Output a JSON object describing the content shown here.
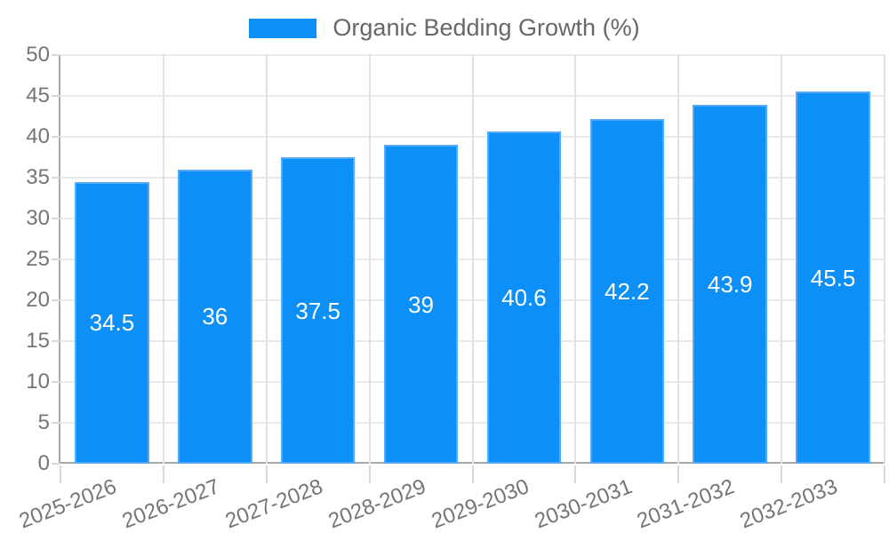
{
  "chart_data": {
    "type": "bar",
    "title": "Organic Bedding Growth (%)",
    "categories": [
      "2025-2026",
      "2026-2027",
      "2027-2028",
      "2028-2029",
      "2029-2030",
      "2030-2031",
      "2031-2032",
      "2032-2033"
    ],
    "series": [
      {
        "name": "Organic Bedding Growth (%)",
        "values": [
          34.5,
          36,
          37.5,
          39,
          40.6,
          42.2,
          43.9,
          45.5
        ]
      }
    ],
    "value_labels": [
      "34.5",
      "36",
      "37.5",
      "39",
      "40.6",
      "42.2",
      "43.9",
      "45.5"
    ],
    "xlabel": "",
    "ylabel": "",
    "ylim": [
      0,
      50
    ],
    "ytick_step": 5,
    "ytick_labels": [
      "0",
      "5",
      "10",
      "15",
      "20",
      "25",
      "30",
      "35",
      "40",
      "45",
      "50"
    ],
    "grid": true,
    "legend_position": "top",
    "colors": {
      "bar_fill": "#0d8ff8",
      "bar_border": "#54aaf9",
      "grid_h": "#eaeaea",
      "grid_v": "#e2e2e2",
      "axis": "#a8a8a8",
      "tick_mark": "#d9d9d9",
      "tick_text": "#757575",
      "legend_text": "#676767",
      "value_text": "#ffffff",
      "background": "#ffffff"
    }
  }
}
